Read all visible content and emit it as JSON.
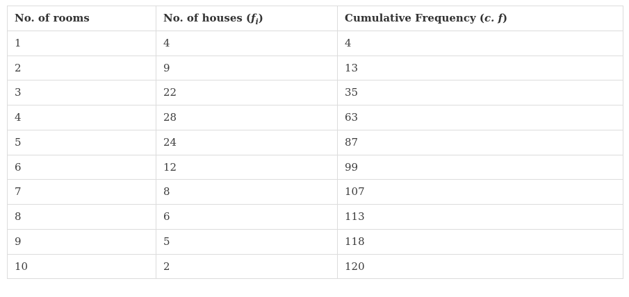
{
  "chart_data": {
    "type": "table",
    "title": "",
    "columns": [
      "No. of rooms",
      "No. of houses (f_i)",
      "Cumulative Frequency (c. f)"
    ],
    "rows": [
      [
        "1",
        "4",
        "4"
      ],
      [
        "2",
        "9",
        "13"
      ],
      [
        "3",
        "22",
        "35"
      ],
      [
        "4",
        "28",
        "63"
      ],
      [
        "5",
        "24",
        "87"
      ],
      [
        "6",
        "12",
        "99"
      ],
      [
        "7",
        "8",
        "107"
      ],
      [
        "8",
        "6",
        "113"
      ],
      [
        "9",
        "5",
        "118"
      ],
      [
        "10",
        "2",
        "120"
      ]
    ]
  },
  "table": {
    "headers": {
      "rooms": {
        "text": "No. of rooms"
      },
      "houses": {
        "prefix": "No. of houses (",
        "math": "f",
        "sub": "i",
        "suffix": ")"
      },
      "cumulative": {
        "prefix": "Cumulative Frequency (",
        "math": "c. f",
        "suffix": ")"
      }
    }
  },
  "colors": {
    "border": "#dcdcdc",
    "header_text": "#333333",
    "cell_text": "#3b3b3b",
    "background": "#ffffff"
  }
}
